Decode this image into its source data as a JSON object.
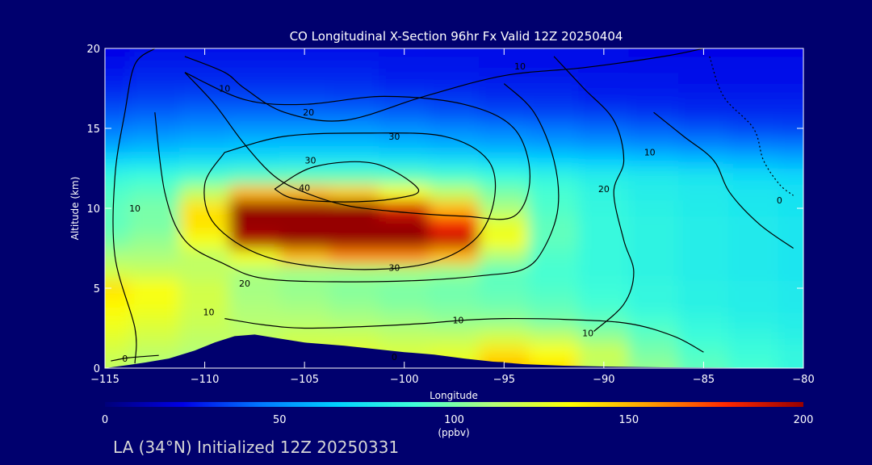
{
  "footer_text": "LA (34°N) Initialized 12Z 20250331",
  "chart_data": {
    "type": "heatmap",
    "title": "CO Longitudinal X-Section 96hr  Fx Valid 12Z 20250404",
    "xlabel": "Longitude",
    "ylabel": "Altitude (km)",
    "xlim": [
      -115,
      -80
    ],
    "ylim": [
      0,
      20
    ],
    "x_ticks": [
      "−115",
      "−110",
      "−105",
      "−100",
      "−95",
      "−90",
      "−85",
      "−80"
    ],
    "x_tick_values": [
      -115,
      -110,
      -105,
      -100,
      -95,
      -90,
      -85,
      -80
    ],
    "y_ticks": [
      "0",
      "5",
      "10",
      "15",
      "20"
    ],
    "y_tick_values": [
      0,
      5,
      10,
      15,
      20
    ],
    "colorbar": {
      "min": 0,
      "max": 200,
      "ticks": [
        "0",
        "50",
        "100",
        "150",
        "200"
      ],
      "tick_values": [
        0,
        50,
        100,
        150,
        200
      ],
      "label": "100",
      "units": "(ppbv)"
    },
    "colormap": [
      "#00007a",
      "#0000e6",
      "#0078ff",
      "#00d2ff",
      "#40ffd8",
      "#b4ff78",
      "#ffff00",
      "#ffa000",
      "#ff2800",
      "#960000"
    ],
    "background": {
      "color": "#00006e"
    },
    "field": {
      "description_units": "CO mixing ratio (ppbv)",
      "x": [
        -115,
        -112.5,
        -110,
        -107.5,
        -105,
        -102.5,
        -100,
        -97.5,
        -95,
        -92.5,
        -90,
        -87.5,
        -85,
        -82.5,
        -80
      ],
      "y": [
        0,
        1,
        2,
        3,
        4,
        5,
        6,
        7,
        8,
        9,
        10,
        11,
        12,
        13,
        14,
        15,
        16,
        17,
        18,
        19,
        20
      ],
      "values": [
        [
          115,
          110,
          100,
          120,
          125,
          125,
          120,
          128,
          150,
          140,
          115,
          105,
          95,
          90,
          85
        ],
        [
          120,
          115,
          112,
          118,
          122,
          125,
          122,
          125,
          140,
          132,
          118,
          100,
          92,
          88,
          85
        ],
        [
          125,
          120,
          115,
          115,
          118,
          118,
          115,
          115,
          120,
          115,
          105,
          95,
          88,
          85,
          82
        ],
        [
          130,
          125,
          118,
          112,
          112,
          110,
          108,
          105,
          105,
          100,
          95,
          90,
          85,
          82,
          80
        ],
        [
          135,
          130,
          120,
          110,
          108,
          105,
          102,
          100,
          98,
          95,
          90,
          85,
          82,
          80,
          78
        ],
        [
          140,
          132,
          120,
          108,
          105,
          102,
          100,
          98,
          95,
          92,
          88,
          85,
          82,
          80,
          78
        ],
        [
          120,
          118,
          115,
          110,
          108,
          108,
          108,
          105,
          95,
          90,
          86,
          83,
          80,
          78,
          76
        ],
        [
          110,
          110,
          115,
          130,
          150,
          160,
          160,
          150,
          110,
          92,
          86,
          83,
          80,
          78,
          76
        ],
        [
          100,
          105,
          130,
          195,
          210,
          210,
          205,
          190,
          130,
          95,
          86,
          83,
          80,
          78,
          76
        ],
        [
          95,
          100,
          140,
          210,
          215,
          215,
          210,
          180,
          125,
          95,
          86,
          83,
          80,
          78,
          76
        ],
        [
          95,
          100,
          140,
          205,
          210,
          205,
          185,
          150,
          110,
          92,
          85,
          82,
          79,
          77,
          75
        ],
        [
          92,
          95,
          115,
          150,
          150,
          145,
          130,
          115,
          100,
          90,
          84,
          80,
          78,
          76,
          74
        ],
        [
          85,
          88,
          92,
          95,
          96,
          96,
          95,
          92,
          88,
          84,
          80,
          78,
          76,
          72,
          70
        ],
        [
          70,
          72,
          74,
          75,
          76,
          76,
          75,
          73,
          70,
          68,
          66,
          64,
          62,
          60,
          58
        ],
        [
          55,
          58,
          60,
          62,
          62,
          62,
          60,
          58,
          56,
          54,
          52,
          50,
          48,
          46,
          45
        ],
        [
          45,
          48,
          50,
          52,
          52,
          52,
          50,
          48,
          46,
          44,
          42,
          40,
          38,
          36,
          35
        ],
        [
          38,
          40,
          42,
          42,
          42,
          42,
          40,
          38,
          36,
          35,
          34,
          32,
          30,
          30,
          30
        ],
        [
          32,
          34,
          35,
          35,
          35,
          34,
          33,
          32,
          30,
          30,
          28,
          28,
          27,
          27,
          27
        ],
        [
          28,
          30,
          30,
          30,
          30,
          30,
          28,
          28,
          27,
          27,
          26,
          26,
          25,
          25,
          25
        ],
        [
          25,
          27,
          27,
          27,
          27,
          27,
          26,
          26,
          25,
          25,
          25,
          24,
          24,
          24,
          24
        ],
        [
          23,
          25,
          25,
          25,
          25,
          25,
          25,
          24,
          24,
          24,
          24,
          23,
          23,
          23,
          23
        ]
      ]
    },
    "terrain": {
      "x": [
        -115,
        -113.8,
        -113,
        -111.8,
        -110.5,
        -109.5,
        -108.5,
        -107.5,
        -106.5,
        -105,
        -103,
        -101.5,
        -100,
        -98.5,
        -97,
        -95.5,
        -94,
        -92,
        -90,
        -87,
        -84,
        -80
      ],
      "altitude_km": [
        0.0,
        0.2,
        0.35,
        0.6,
        1.1,
        1.6,
        2.0,
        2.1,
        1.9,
        1.6,
        1.4,
        1.2,
        1.0,
        0.85,
        0.6,
        0.4,
        0.25,
        0.15,
        0.1,
        0.05,
        0.03,
        0.0
      ]
    },
    "contours": [
      {
        "label": "10",
        "points": [
          [
            -113.5,
            0.3
          ],
          [
            -113.5,
            2.5
          ],
          [
            -114.5,
            7
          ],
          [
            -114.5,
            12
          ],
          [
            -114,
            16
          ],
          [
            -113.5,
            19
          ],
          [
            -112.5,
            20
          ]
        ]
      },
      {
        "label": "10",
        "points": [
          [
            -111,
            19.5
          ],
          [
            -109,
            18.5
          ],
          [
            -108,
            17.5
          ],
          [
            -106,
            16
          ],
          [
            -103,
            15.5
          ],
          [
            -99,
            17
          ],
          [
            -95,
            18.3
          ],
          [
            -91,
            18.8
          ],
          [
            -87,
            19.5
          ],
          [
            -85,
            20
          ]
        ]
      },
      {
        "label": "10",
        "points": [
          [
            -109,
            3.1
          ],
          [
            -107,
            2.7
          ],
          [
            -105,
            2.5
          ],
          [
            -102,
            2.6
          ],
          [
            -99,
            2.8
          ],
          [
            -97,
            3.0
          ],
          [
            -95,
            3.1
          ],
          [
            -92,
            3.05
          ],
          [
            -88.8,
            2.8
          ],
          [
            -86.5,
            2.0
          ],
          [
            -85,
            1.0
          ]
        ]
      },
      {
        "label": "10",
        "points": [
          [
            -92.5,
            19.5
          ],
          [
            -91,
            17.5
          ],
          [
            -89.5,
            15.5
          ],
          [
            -89,
            13
          ],
          [
            -89.5,
            11
          ],
          [
            -89,
            8
          ],
          [
            -88.5,
            6
          ],
          [
            -89,
            4
          ],
          [
            -90.5,
            2.3
          ]
        ]
      },
      {
        "label": "20",
        "points": [
          [
            -111,
            18.5
          ],
          [
            -109.5,
            16.5
          ],
          [
            -108,
            14
          ],
          [
            -106.5,
            12
          ],
          [
            -105,
            11
          ],
          [
            -103,
            10.2
          ],
          [
            -100.5,
            9.8
          ],
          [
            -97,
            9.5
          ],
          [
            -94.5,
            9.5
          ],
          [
            -93.7,
            12
          ],
          [
            -94.5,
            15
          ],
          [
            -97,
            16.5
          ],
          [
            -101,
            17
          ],
          [
            -105,
            16.5
          ],
          [
            -108,
            16.8
          ],
          [
            -111,
            18.5
          ]
        ]
      },
      {
        "label": "20",
        "points": [
          [
            -112.5,
            16
          ],
          [
            -112,
            11
          ],
          [
            -111,
            8
          ],
          [
            -109,
            6.5
          ],
          [
            -107,
            5.6
          ],
          [
            -103,
            5.4
          ],
          [
            -99,
            5.5
          ],
          [
            -96,
            5.8
          ],
          [
            -94,
            6.2
          ],
          [
            -93,
            7.5
          ],
          [
            -92.3,
            10
          ],
          [
            -92.5,
            13
          ],
          [
            -93.5,
            16
          ],
          [
            -95,
            17.8
          ]
        ]
      },
      {
        "label": "30",
        "points": [
          [
            -109,
            13.5
          ],
          [
            -106,
            14.5
          ],
          [
            -102,
            14.7
          ],
          [
            -98,
            14.5
          ],
          [
            -95.8,
            13
          ],
          [
            -95.5,
            10.5
          ],
          [
            -96.5,
            8
          ],
          [
            -99,
            6.5
          ],
          [
            -103,
            6.2
          ],
          [
            -107,
            7
          ],
          [
            -109.5,
            9
          ],
          [
            -110,
            11.5
          ],
          [
            -109,
            13.5
          ]
        ]
      },
      {
        "label": "40",
        "points": [
          [
            -106.5,
            11.2
          ],
          [
            -104.5,
            12.6
          ],
          [
            -101.5,
            12.8
          ],
          [
            -99.3,
            11.2
          ],
          [
            -100.5,
            10.6
          ],
          [
            -103,
            10.4
          ],
          [
            -105.5,
            10.6
          ],
          [
            -106.5,
            11.2
          ]
        ]
      },
      {
        "label": "0",
        "points": [
          [
            -114.7,
            0.45
          ],
          [
            -113.8,
            0.65
          ],
          [
            -112.3,
            0.8
          ]
        ]
      },
      {
        "label": "0",
        "points": [
          [
            -104.5,
            0.55
          ],
          [
            -102,
            0.5
          ],
          [
            -99.5,
            0.45
          ],
          [
            -97,
            0.4
          ],
          [
            -95,
            0.35
          ]
        ]
      },
      {
        "label": "0",
        "points": [
          [
            -84.7,
            19.5
          ],
          [
            -84,
            17
          ],
          [
            -82.5,
            15
          ],
          [
            -82,
            13
          ],
          [
            -81.2,
            11.5
          ],
          [
            -80.5,
            10.8
          ]
        ]
      },
      {
        "label": "10",
        "points": [
          [
            -87.5,
            16
          ],
          [
            -86,
            14.5
          ],
          [
            -84.5,
            13
          ],
          [
            -83.7,
            11
          ],
          [
            -82.2,
            9
          ],
          [
            -80.5,
            7.5
          ]
        ]
      }
    ],
    "contour_labels": [
      {
        "text": "10",
        "x": -113.5,
        "y": 10
      },
      {
        "text": "10",
        "x": -109,
        "y": 17.5
      },
      {
        "text": "20",
        "x": -104.8,
        "y": 16
      },
      {
        "text": "30",
        "x": -100.5,
        "y": 14.5
      },
      {
        "text": "30",
        "x": -104.7,
        "y": 13
      },
      {
        "text": "40",
        "x": -105,
        "y": 11.3
      },
      {
        "text": "30",
        "x": -100.5,
        "y": 6.3
      },
      {
        "text": "20",
        "x": -108,
        "y": 5.3
      },
      {
        "text": "10",
        "x": -109.8,
        "y": 3.5
      },
      {
        "text": "0",
        "x": -114,
        "y": 0.6
      },
      {
        "text": "0",
        "x": -100.5,
        "y": 0.7
      },
      {
        "text": "10",
        "x": -97.3,
        "y": 3
      },
      {
        "text": "10",
        "x": -90.8,
        "y": 2.2
      },
      {
        "text": "10",
        "x": -94.2,
        "y": 18.9
      },
      {
        "text": "20",
        "x": -90,
        "y": 11.2
      },
      {
        "text": "10",
        "x": -87.7,
        "y": 13.5
      },
      {
        "text": "0",
        "x": -81.2,
        "y": 10.5
      }
    ]
  }
}
